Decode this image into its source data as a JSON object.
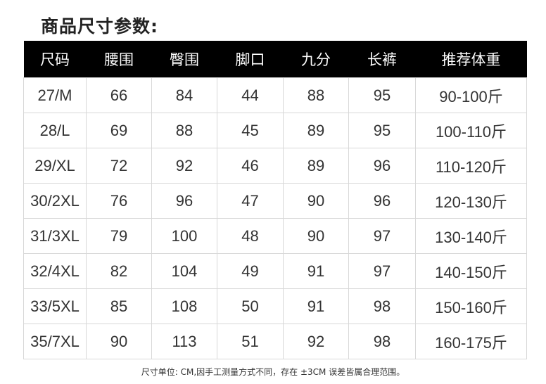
{
  "title": "商品尺寸参数:",
  "table": {
    "headers": [
      "尺码",
      "腰围",
      "臀围",
      "脚口",
      "九分",
      "长裤",
      "推荐体重"
    ],
    "rows": [
      [
        "27/M",
        "66",
        "84",
        "44",
        "88",
        "95",
        "90-100斤"
      ],
      [
        "28/L",
        "69",
        "88",
        "45",
        "89",
        "95",
        "100-110斤"
      ],
      [
        "29/XL",
        "72",
        "92",
        "46",
        "89",
        "96",
        "110-120斤"
      ],
      [
        "30/2XL",
        "76",
        "96",
        "47",
        "90",
        "96",
        "120-130斤"
      ],
      [
        "31/3XL",
        "79",
        "100",
        "48",
        "90",
        "97",
        "130-140斤"
      ],
      [
        "32/4XL",
        "82",
        "104",
        "49",
        "91",
        "97",
        "140-150斤"
      ],
      [
        "33/5XL",
        "85",
        "108",
        "50",
        "91",
        "98",
        "150-160斤"
      ],
      [
        "35/7XL",
        "90",
        "113",
        "51",
        "92",
        "98",
        "160-175斤"
      ]
    ]
  },
  "note": "尺寸单位: CM,因手工测量方式不同，存在 ±3CM 误差皆属合理范围。"
}
